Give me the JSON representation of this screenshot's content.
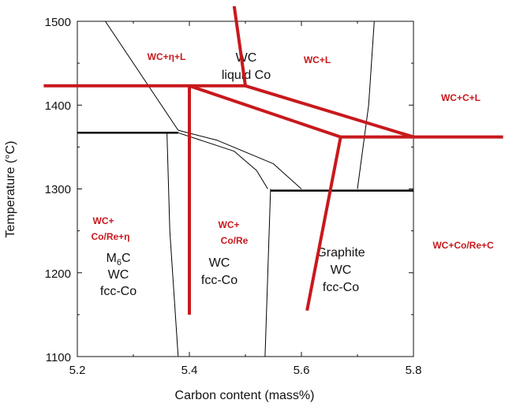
{
  "chart_data": {
    "type": "line",
    "xlabel": "Carbon content (mass%)",
    "ylabel": "Temperature (°C)",
    "xlim": [
      5.2,
      5.8
    ],
    "ylim": [
      1100,
      1500
    ],
    "x_ticks": [
      "5.2",
      "5.4",
      "5.6",
      "5.8"
    ],
    "y_ticks": [
      "1100",
      "1200",
      "1300",
      "1400",
      "1500"
    ],
    "colors": {
      "boundary_thin": "#000000",
      "boundary_thick": "#000000",
      "overlay": "#c8191d"
    },
    "thin_boundaries": [
      {
        "name": "liquidus-left",
        "points": [
          [
            5.25,
            1500
          ],
          [
            5.34,
            1410
          ],
          [
            5.38,
            1370
          ]
        ]
      },
      {
        "name": "eta-upper-curve",
        "points": [
          [
            5.38,
            1370
          ],
          [
            5.45,
            1358
          ],
          [
            5.55,
            1330
          ],
          [
            5.6,
            1300
          ]
        ]
      },
      {
        "name": "mid-curve",
        "points": [
          [
            5.38,
            1367
          ],
          [
            5.48,
            1345
          ],
          [
            5.52,
            1322
          ],
          [
            5.54,
            1300
          ]
        ]
      },
      {
        "name": "eta-lower-boundary",
        "points": [
          [
            5.36,
            1367
          ],
          [
            5.365,
            1250
          ],
          [
            5.38,
            1100
          ]
        ]
      },
      {
        "name": "graphite-boundary",
        "points": [
          [
            5.545,
            1300
          ],
          [
            5.54,
            1200
          ],
          [
            5.535,
            1100
          ]
        ]
      },
      {
        "name": "liquidus-right",
        "points": [
          [
            5.73,
            1500
          ],
          [
            5.72,
            1400
          ],
          [
            5.7,
            1300
          ]
        ]
      }
    ],
    "thick_boundaries": [
      {
        "name": "eutectic-left",
        "points": [
          [
            5.2,
            1367
          ],
          [
            5.38,
            1367
          ]
        ]
      },
      {
        "name": "eutectic-right",
        "points": [
          [
            5.545,
            1298
          ],
          [
            5.8,
            1298
          ]
        ]
      }
    ],
    "overlay_lines": [
      {
        "name": "red-h-top",
        "points": [
          [
            5.14,
            1423
          ],
          [
            5.5,
            1423
          ]
        ]
      },
      {
        "name": "red-diag-top",
        "points": [
          [
            5.48,
            1518
          ],
          [
            5.5,
            1423
          ]
        ]
      },
      {
        "name": "red-diag-right",
        "points": [
          [
            5.5,
            1423
          ],
          [
            5.8,
            1362
          ]
        ]
      },
      {
        "name": "red-diag-left",
        "points": [
          [
            5.4,
            1423
          ],
          [
            5.67,
            1362
          ]
        ]
      },
      {
        "name": "red-h-right",
        "points": [
          [
            5.67,
            1362
          ],
          [
            5.96,
            1362
          ]
        ]
      },
      {
        "name": "red-vertical",
        "points": [
          [
            5.4,
            1423
          ],
          [
            5.4,
            1150
          ]
        ]
      },
      {
        "name": "red-slant-bottom",
        "points": [
          [
            5.67,
            1362
          ],
          [
            5.61,
            1155
          ]
        ]
      }
    ],
    "annotations_black": [
      {
        "name": "wc-liquid-co",
        "lines": [
          "WC",
          "liquid Co"
        ]
      },
      {
        "name": "m6c-wc-fcc",
        "lines": [
          "M",
          "6",
          "C",
          "WC",
          "fcc-Co"
        ]
      },
      {
        "name": "wc-fcc-mid",
        "lines": [
          "WC",
          "fcc-Co"
        ]
      },
      {
        "name": "graphite-wc-fcc",
        "lines": [
          "Graphite",
          "WC",
          "fcc-Co"
        ]
      }
    ],
    "annotations_red": [
      {
        "name": "wc-eta-l",
        "text": "WC+η+L"
      },
      {
        "name": "wc-l",
        "text": "WC+L"
      },
      {
        "name": "wc-c-l",
        "text": "WC+C+L"
      },
      {
        "name": "wc-co-re-eta",
        "lines": [
          "WC+",
          "Co/Re+η"
        ]
      },
      {
        "name": "wc-co-re",
        "lines": [
          "WC+",
          "Co/Re"
        ]
      },
      {
        "name": "wc-co-re-c",
        "text": "WC+Co/Re+C"
      }
    ]
  }
}
